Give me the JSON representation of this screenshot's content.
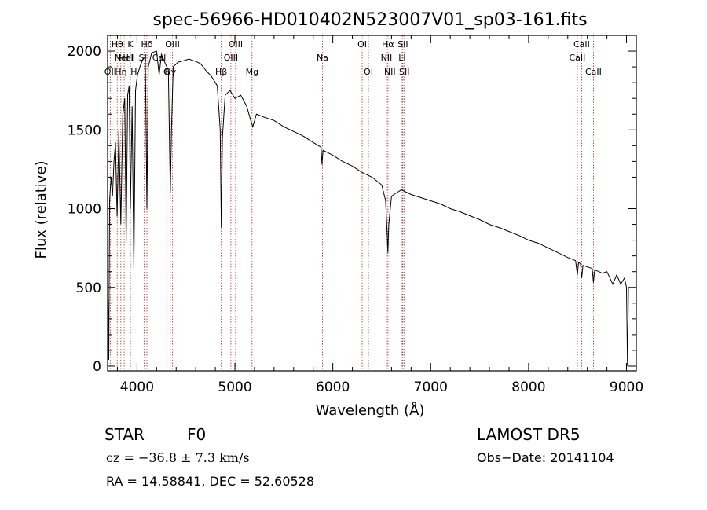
{
  "chart_data": {
    "type": "line",
    "title": "spec-56966-HD010402N523007V01_sp03-161.fits",
    "xlabel": "Wavelength (Å)",
    "ylabel": "Flux (relative)",
    "xlim": [
      3700,
      9100
    ],
    "ylim": [
      -30,
      2100
    ],
    "x_ticks": [
      4000,
      5000,
      6000,
      7000,
      8000,
      9000
    ],
    "y_ticks": [
      0,
      500,
      1000,
      1500,
      2000
    ],
    "grid": false,
    "series": [
      {
        "values": [
          {
            "x": 3700,
            "y": 0
          },
          {
            "x": 3705,
            "y": 420
          },
          {
            "x": 3712,
            "y": 40
          },
          {
            "x": 3720,
            "y": 1050
          },
          {
            "x": 3735,
            "y": 1200
          },
          {
            "x": 3750,
            "y": 1080
          },
          {
            "x": 3765,
            "y": 1300
          },
          {
            "x": 3780,
            "y": 1420
          },
          {
            "x": 3797,
            "y": 950
          },
          {
            "x": 3815,
            "y": 1500
          },
          {
            "x": 3835,
            "y": 900
          },
          {
            "x": 3855,
            "y": 1600
          },
          {
            "x": 3875,
            "y": 1700
          },
          {
            "x": 3889,
            "y": 780
          },
          {
            "x": 3905,
            "y": 1720
          },
          {
            "x": 3920,
            "y": 1780
          },
          {
            "x": 3933,
            "y": 1000
          },
          {
            "x": 3950,
            "y": 1650
          },
          {
            "x": 3968,
            "y": 620
          },
          {
            "x": 3985,
            "y": 1750
          },
          {
            "x": 4005,
            "y": 1850
          },
          {
            "x": 4030,
            "y": 1900
          },
          {
            "x": 4060,
            "y": 1950
          },
          {
            "x": 4085,
            "y": 1960
          },
          {
            "x": 4101,
            "y": 1000
          },
          {
            "x": 4115,
            "y": 1900
          },
          {
            "x": 4150,
            "y": 1990
          },
          {
            "x": 4200,
            "y": 2000
          },
          {
            "x": 4226,
            "y": 1850
          },
          {
            "x": 4250,
            "y": 1980
          },
          {
            "x": 4290,
            "y": 1920
          },
          {
            "x": 4320,
            "y": 1880
          },
          {
            "x": 4340,
            "y": 1100
          },
          {
            "x": 4352,
            "y": 1500
          },
          {
            "x": 4370,
            "y": 1900
          },
          {
            "x": 4420,
            "y": 1930
          },
          {
            "x": 4480,
            "y": 1940
          },
          {
            "x": 4530,
            "y": 1950
          },
          {
            "x": 4600,
            "y": 1935
          },
          {
            "x": 4650,
            "y": 1920
          },
          {
            "x": 4700,
            "y": 1880
          },
          {
            "x": 4760,
            "y": 1840
          },
          {
            "x": 4820,
            "y": 1780
          },
          {
            "x": 4850,
            "y": 1500
          },
          {
            "x": 4861,
            "y": 880
          },
          {
            "x": 4872,
            "y": 1450
          },
          {
            "x": 4900,
            "y": 1720
          },
          {
            "x": 4950,
            "y": 1750
          },
          {
            "x": 5000,
            "y": 1700
          },
          {
            "x": 5060,
            "y": 1720
          },
          {
            "x": 5120,
            "y": 1650
          },
          {
            "x": 5167,
            "y": 1550
          },
          {
            "x": 5183,
            "y": 1520
          },
          {
            "x": 5220,
            "y": 1600
          },
          {
            "x": 5300,
            "y": 1580
          },
          {
            "x": 5400,
            "y": 1560
          },
          {
            "x": 5500,
            "y": 1520
          },
          {
            "x": 5600,
            "y": 1490
          },
          {
            "x": 5700,
            "y": 1460
          },
          {
            "x": 5800,
            "y": 1420
          },
          {
            "x": 5880,
            "y": 1390
          },
          {
            "x": 5890,
            "y": 1280
          },
          {
            "x": 5900,
            "y": 1370
          },
          {
            "x": 6000,
            "y": 1340
          },
          {
            "x": 6100,
            "y": 1300
          },
          {
            "x": 6200,
            "y": 1270
          },
          {
            "x": 6300,
            "y": 1230
          },
          {
            "x": 6400,
            "y": 1200
          },
          {
            "x": 6500,
            "y": 1150
          },
          {
            "x": 6540,
            "y": 1050
          },
          {
            "x": 6555,
            "y": 850
          },
          {
            "x": 6563,
            "y": 720
          },
          {
            "x": 6572,
            "y": 900
          },
          {
            "x": 6600,
            "y": 1080
          },
          {
            "x": 6700,
            "y": 1120
          },
          {
            "x": 6800,
            "y": 1090
          },
          {
            "x": 6900,
            "y": 1070
          },
          {
            "x": 7000,
            "y": 1050
          },
          {
            "x": 7100,
            "y": 1030
          },
          {
            "x": 7200,
            "y": 1000
          },
          {
            "x": 7300,
            "y": 980
          },
          {
            "x": 7400,
            "y": 955
          },
          {
            "x": 7500,
            "y": 930
          },
          {
            "x": 7600,
            "y": 900
          },
          {
            "x": 7700,
            "y": 880
          },
          {
            "x": 7800,
            "y": 855
          },
          {
            "x": 7900,
            "y": 830
          },
          {
            "x": 8000,
            "y": 800
          },
          {
            "x": 8100,
            "y": 780
          },
          {
            "x": 8200,
            "y": 750
          },
          {
            "x": 8300,
            "y": 720
          },
          {
            "x": 8400,
            "y": 690
          },
          {
            "x": 8480,
            "y": 670
          },
          {
            "x": 8498,
            "y": 580
          },
          {
            "x": 8510,
            "y": 660
          },
          {
            "x": 8530,
            "y": 650
          },
          {
            "x": 8542,
            "y": 560
          },
          {
            "x": 8555,
            "y": 640
          },
          {
            "x": 8600,
            "y": 630
          },
          {
            "x": 8650,
            "y": 620
          },
          {
            "x": 8662,
            "y": 530
          },
          {
            "x": 8675,
            "y": 610
          },
          {
            "x": 8720,
            "y": 600
          },
          {
            "x": 8750,
            "y": 590
          },
          {
            "x": 8800,
            "y": 600
          },
          {
            "x": 8860,
            "y": 520
          },
          {
            "x": 8900,
            "y": 580
          },
          {
            "x": 8940,
            "y": 520
          },
          {
            "x": 8980,
            "y": 560
          },
          {
            "x": 9000,
            "y": 500
          },
          {
            "x": 9010,
            "y": 0
          },
          {
            "x": 9020,
            "y": 500
          }
        ]
      }
    ],
    "lines": [
      {
        "x": 3727,
        "label": "OII",
        "row": 2
      },
      {
        "x": 3798,
        "label": "Hθ",
        "row": 0
      },
      {
        "x": 3835,
        "label": "Hη",
        "row": 2
      },
      {
        "x": 3869,
        "label": "NeIII",
        "row": 1
      },
      {
        "x": 3889,
        "label": "HeI",
        "row": 1
      },
      {
        "x": 3933,
        "label": "K",
        "row": 0
      },
      {
        "x": 3968,
        "label": "H",
        "row": 2
      },
      {
        "x": 4101,
        "label": "Hδ",
        "row": 0
      },
      {
        "x": 4072,
        "label": "SII",
        "row": 1
      },
      {
        "x": 4226,
        "label": "CaI",
        "row": 1
      },
      {
        "x": 4304,
        "label": "G",
        "row": 2
      },
      {
        "x": 4340,
        "label": "Hγ",
        "row": 2
      },
      {
        "x": 4363,
        "label": "OIII",
        "row": 0
      },
      {
        "x": 4861,
        "label": "Hβ",
        "row": 2
      },
      {
        "x": 4959,
        "label": "OIII",
        "row": 1
      },
      {
        "x": 5007,
        "label": "OIII",
        "row": 0
      },
      {
        "x": 5175,
        "label": "Mg",
        "row": 2
      },
      {
        "x": 5894,
        "label": "Na",
        "row": 1
      },
      {
        "x": 6300,
        "label": "OI",
        "row": 0
      },
      {
        "x": 6364,
        "label": "OI",
        "row": 2
      },
      {
        "x": 6548,
        "label": "NII",
        "row": 1
      },
      {
        "x": 6563,
        "label": "Hα",
        "row": 0
      },
      {
        "x": 6583,
        "label": "NII",
        "row": 2
      },
      {
        "x": 6708,
        "label": "Li",
        "row": 1
      },
      {
        "x": 6716,
        "label": "SII",
        "row": 0
      },
      {
        "x": 6731,
        "label": "SII",
        "row": 2
      },
      {
        "x": 8498,
        "label": "CaII",
        "row": 1
      },
      {
        "x": 8542,
        "label": "CaII",
        "row": 0
      },
      {
        "x": 8662,
        "label": "CaII",
        "row": 2
      }
    ]
  },
  "info": {
    "object_class": "STAR",
    "subclass": "F0",
    "survey": "LAMOST DR5",
    "cz": "cz = −36.8 ± 7.3 km/s",
    "obs_date": "Obs−Date: 20141104",
    "coords": "RA =  14.58841, DEC =  52.60528"
  }
}
